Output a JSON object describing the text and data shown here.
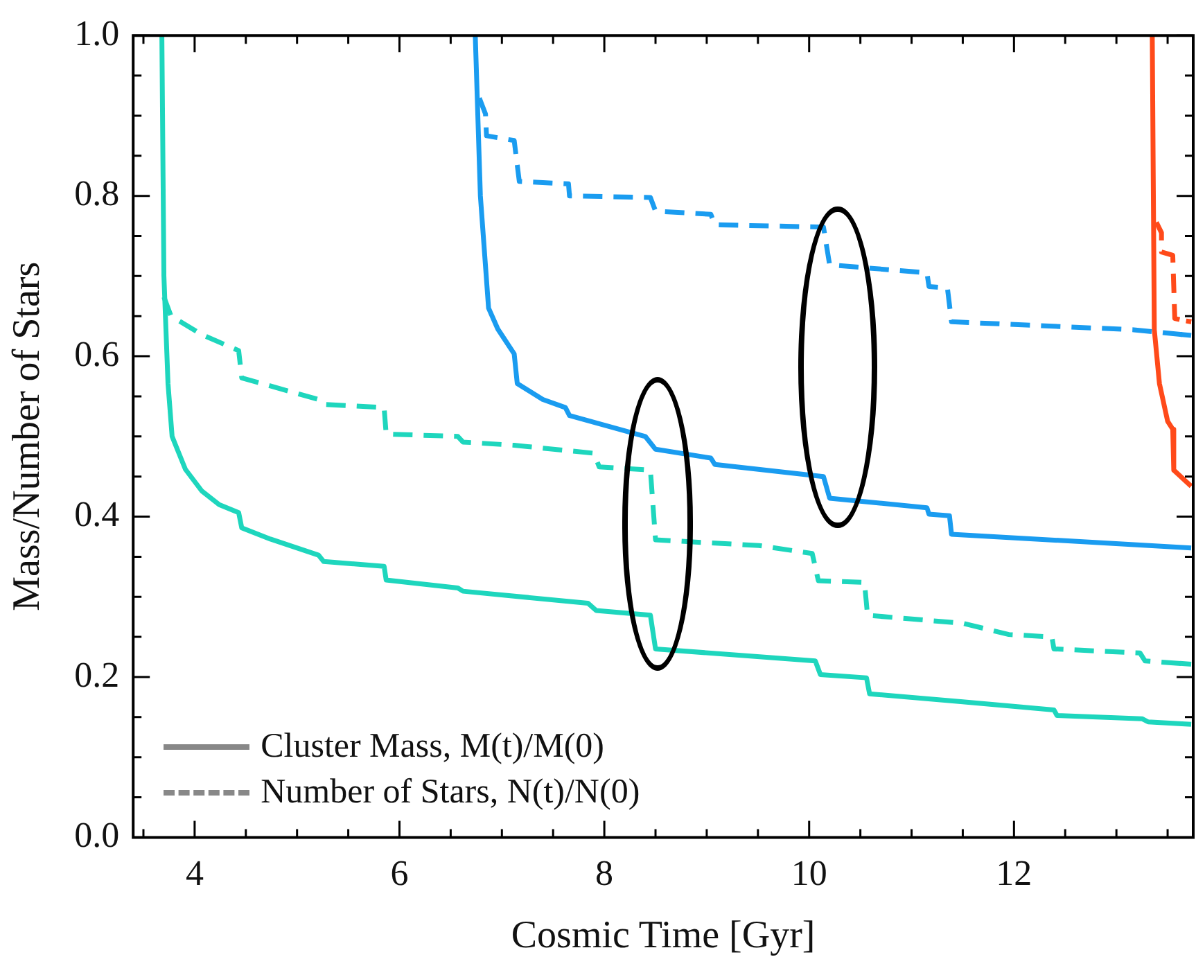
{
  "chart_data": {
    "type": "line",
    "xlabel": "Cosmic Time [Gyr]",
    "ylabel": "Mass/Number of Stars",
    "xlim": [
      3.4,
      13.75
    ],
    "ylim": [
      0,
      1
    ],
    "xticks": [
      {
        "value": 3.5,
        "label": null
      },
      4,
      {
        "value": 4.5,
        "label": null
      },
      {
        "value": 5,
        "label": null
      },
      {
        "value": 5.5,
        "label": null
      },
      6,
      {
        "value": 6.5,
        "label": null
      },
      {
        "value": 7,
        "label": null
      },
      {
        "value": 7.5,
        "label": null
      },
      8,
      {
        "value": 8.5,
        "label": null
      },
      {
        "value": 9,
        "label": null
      },
      {
        "value": 9.5,
        "label": null
      },
      10,
      {
        "value": 10.5,
        "label": null
      },
      {
        "value": 11,
        "label": null
      },
      {
        "value": 11.5,
        "label": null
      },
      12,
      {
        "value": 12.5,
        "label": null
      },
      {
        "value": 13,
        "label": null
      },
      {
        "value": 13.5,
        "label": null
      }
    ],
    "yticks": [
      {
        "value": 0,
        "label": "0.0"
      },
      {
        "value": 0.05,
        "label": null
      },
      {
        "value": 0.1,
        "label": null
      },
      {
        "value": 0.15,
        "label": null
      },
      {
        "value": 0.2,
        "label": "0.2"
      },
      {
        "value": 0.25,
        "label": null
      },
      {
        "value": 0.3,
        "label": null
      },
      {
        "value": 0.35,
        "label": null
      },
      {
        "value": 0.4,
        "label": "0.4"
      },
      {
        "value": 0.45,
        "label": null
      },
      {
        "value": 0.5,
        "label": null
      },
      {
        "value": 0.55,
        "label": null
      },
      {
        "value": 0.6,
        "label": "0.6"
      },
      {
        "value": 0.65,
        "label": null
      },
      {
        "value": 0.7,
        "label": null
      },
      {
        "value": 0.75,
        "label": null
      },
      {
        "value": 0.8,
        "label": "0.8"
      },
      {
        "value": 0.85,
        "label": null
      },
      {
        "value": 0.9,
        "label": null
      },
      {
        "value": 0.95,
        "label": null
      },
      {
        "value": 1,
        "label": "1.0"
      }
    ],
    "legend": "bottom left",
    "series": [
      {
        "color": "#1ed6bd",
        "line_style": "solid",
        "x": [
          3.68,
          3.7,
          3.74,
          3.78,
          3.91,
          4.07,
          4.24,
          4.43,
          4.46,
          4.74,
          5.21,
          5.26,
          5.85,
          5.87,
          6.57,
          6.62,
          7.84,
          7.92,
          8.45,
          8.5,
          10.06,
          10.11,
          10.56,
          10.59,
          11.5,
          12.39,
          12.42,
          13.25,
          13.31,
          13.73
        ],
        "values": [
          1.0,
          0.7,
          0.566,
          0.5,
          0.459,
          0.432,
          0.415,
          0.405,
          0.386,
          0.372,
          0.352,
          0.344,
          0.338,
          0.321,
          0.311,
          0.307,
          0.292,
          0.283,
          0.277,
          0.235,
          0.22,
          0.203,
          0.199,
          0.179,
          0.169,
          0.159,
          0.152,
          0.148,
          0.144,
          0.141
        ]
      },
      {
        "color": "#1ed6bd",
        "line_style": "dashed",
        "x": [
          3.7,
          3.77,
          4.07,
          4.43,
          4.46,
          5.21,
          5.26,
          5.85,
          5.87,
          6.57,
          6.62,
          7.12,
          7.9,
          7.95,
          8.45,
          8.5,
          9.51,
          10.03,
          10.09,
          10.54,
          10.57,
          11.5,
          11.95,
          12.37,
          12.39,
          13.23,
          13.28,
          13.73
        ],
        "values": [
          0.674,
          0.65,
          0.627,
          0.607,
          0.573,
          0.546,
          0.54,
          0.536,
          0.503,
          0.5,
          0.493,
          0.489,
          0.479,
          0.462,
          0.458,
          0.371,
          0.364,
          0.354,
          0.32,
          0.318,
          0.277,
          0.267,
          0.253,
          0.25,
          0.235,
          0.23,
          0.22,
          0.216
        ]
      },
      {
        "color": "#1a9cf0",
        "line_style": "solid",
        "x": [
          6.74,
          6.79,
          6.87,
          6.96,
          7.12,
          7.15,
          7.4,
          7.62,
          7.66,
          8.4,
          8.5,
          9.04,
          9.08,
          10.14,
          10.2,
          11.15,
          11.17,
          11.37,
          11.39,
          13.73
        ],
        "values": [
          1.0,
          0.8,
          0.66,
          0.634,
          0.603,
          0.566,
          0.546,
          0.536,
          0.526,
          0.5,
          0.484,
          0.473,
          0.465,
          0.45,
          0.423,
          0.411,
          0.403,
          0.401,
          0.378,
          0.361
        ]
      },
      {
        "color": "#1a9cf0",
        "line_style": "dashed",
        "x": [
          6.78,
          6.84,
          6.85,
          7.12,
          7.17,
          7.65,
          7.66,
          8.45,
          8.5,
          9.04,
          9.08,
          10.14,
          10.2,
          11.15,
          11.17,
          11.35,
          11.39,
          13.17,
          13.73
        ],
        "values": [
          0.922,
          0.902,
          0.875,
          0.869,
          0.818,
          0.815,
          0.8,
          0.798,
          0.781,
          0.777,
          0.764,
          0.761,
          0.714,
          0.704,
          0.687,
          0.685,
          0.643,
          0.633,
          0.626
        ]
      },
      {
        "color": "#ff4a1a",
        "line_style": "solid",
        "x": [
          13.35,
          13.37,
          13.42,
          13.5,
          13.55,
          13.56,
          13.67,
          13.73
        ],
        "values": [
          1.0,
          0.633,
          0.566,
          0.519,
          0.509,
          0.458,
          0.445,
          0.438
        ]
      },
      {
        "color": "#ff4a1a",
        "line_style": "dashed",
        "x": [
          13.39,
          13.44,
          13.44,
          13.55,
          13.57,
          13.68,
          13.73
        ],
        "values": [
          0.767,
          0.754,
          0.73,
          0.726,
          0.647,
          0.644,
          0.643
        ]
      },
      {
        "name": "Cluster Mass, M(t)/M(0)",
        "color": "#888888",
        "line_style": "solid"
      },
      {
        "name": "Number of Stars, N(t)/N(0)",
        "color": "#888888",
        "line_style": "dashed"
      }
    ]
  }
}
